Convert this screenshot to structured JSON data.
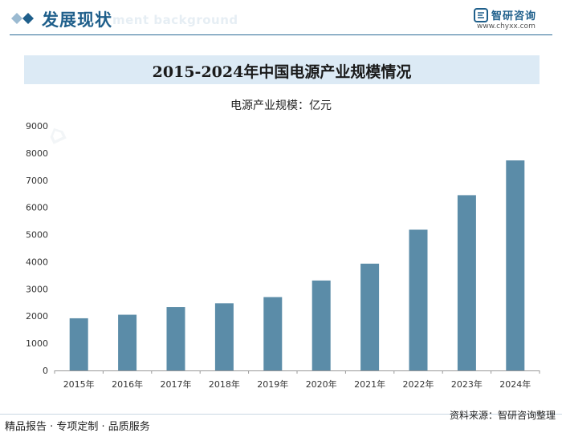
{
  "header": {
    "section_title": "发展现状",
    "section_subtitle": "ment background",
    "brand_name": "智研咨询",
    "brand_url": "www.chyxx.com"
  },
  "chart_data": {
    "type": "bar",
    "title": "2015-2024年中国电源产业规模情况",
    "unit_label": "电源产业规模：亿元",
    "categories": [
      "2015年",
      "2016年",
      "2017年",
      "2018年",
      "2019年",
      "2020年",
      "2021年",
      "2022年",
      "2023年",
      "2024年"
    ],
    "values": [
      1920,
      2050,
      2330,
      2470,
      2700,
      3310,
      3930,
      5180,
      6450,
      7730
    ],
    "ylim": [
      0,
      9000
    ],
    "yticks": [
      0,
      1000,
      2000,
      3000,
      4000,
      5000,
      6000,
      7000,
      8000,
      9000
    ],
    "bar_color": "#5b8ca8",
    "grid": false,
    "legend": "none"
  },
  "footer": {
    "left_text": "精品报告 · 专项定制 · 品质服务",
    "source_text": "资料来源：智研咨询整理"
  },
  "colors": {
    "accent": "#1f5f8b",
    "banner": "#dceaf5"
  }
}
